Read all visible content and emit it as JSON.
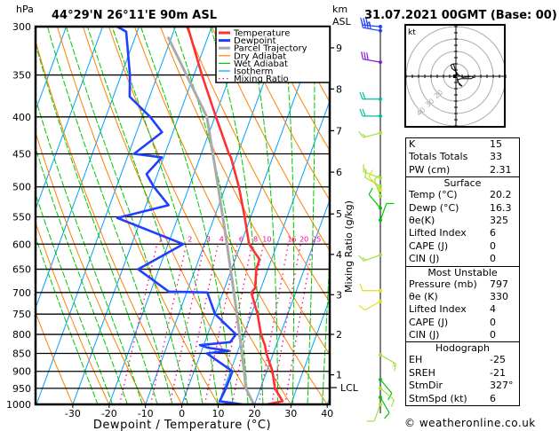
{
  "header": {
    "pressure_unit": "hPa",
    "location": "44°29'N  26°11'E  90m  ASL",
    "height_unit": "km",
    "height_ref": "ASL",
    "datetime": "31.07.2021  00GMT  (Base: 00)"
  },
  "chart_data": {
    "type": "skew-t",
    "xlabel": "Dewpoint / Temperature (°C)",
    "ylabel_right": "Mixing Ratio (g/kg)",
    "pressure_ticks": [
      300,
      350,
      400,
      450,
      500,
      550,
      600,
      650,
      700,
      750,
      800,
      850,
      900,
      950,
      1000
    ],
    "temperature_ticks": [
      -30,
      -20,
      -10,
      0,
      10,
      20,
      30,
      40
    ],
    "xlim": [
      -40,
      40
    ],
    "ylim_hpa": [
      1000,
      300
    ],
    "km_ticks": [
      {
        "label": "1",
        "p": 910
      },
      {
        "label": "2",
        "p": 800
      },
      {
        "label": "3",
        "p": 705
      },
      {
        "label": "4",
        "p": 620
      },
      {
        "label": "5",
        "p": 545
      },
      {
        "label": "6",
        "p": 477
      },
      {
        "label": "7",
        "p": 418
      },
      {
        "label": "8",
        "p": 366
      },
      {
        "label": "9",
        "p": 321
      }
    ],
    "lcl": {
      "label": "LCL",
      "p": 948
    },
    "mixing_ratio_labels": [
      "1",
      "2",
      "3",
      "4",
      "6",
      "8",
      "10",
      "16",
      "20",
      "25"
    ],
    "mixing_ratio_values": [
      1,
      2,
      3,
      4,
      6,
      8,
      10,
      16,
      20,
      25
    ],
    "legend": [
      {
        "label": "Temperature",
        "color": "#ff3030",
        "style": "solid-thick"
      },
      {
        "label": "Dewpoint",
        "color": "#2040ff",
        "style": "solid-thick"
      },
      {
        "label": "Parcel Trajectory",
        "color": "#aaaaaa",
        "style": "solid-thick"
      },
      {
        "label": "Dry Adiabat",
        "color": "#ff8000",
        "style": "solid"
      },
      {
        "label": "Wet Adiabat",
        "color": "#00c800",
        "style": "solid"
      },
      {
        "label": "Isotherm",
        "color": "#00a0ff",
        "style": "solid"
      },
      {
        "label": "Mixing Ratio",
        "color": "#ff0090",
        "style": "dotted"
      }
    ],
    "series": [
      {
        "name": "Temperature",
        "color": "#ff3030",
        "points": [
          [
            1000,
            23.4
          ],
          [
            990,
            27.4
          ],
          [
            950,
            24.0
          ],
          [
            900,
            21.6
          ],
          [
            850,
            18.1
          ],
          [
            830,
            17.0
          ],
          [
            800,
            14.7
          ],
          [
            750,
            11.7
          ],
          [
            700,
            7.8
          ],
          [
            690,
            8.4
          ],
          [
            650,
            6.8
          ],
          [
            630,
            6.7
          ],
          [
            600,
            2.3
          ],
          [
            550,
            -1.7
          ],
          [
            500,
            -6.3
          ],
          [
            455,
            -11.5
          ],
          [
            450,
            -12.4
          ],
          [
            400,
            -19.7
          ],
          [
            350,
            -27.8
          ],
          [
            300,
            -36.6
          ]
        ]
      },
      {
        "name": "Dewpoint",
        "color": "#2040ff",
        "points": [
          [
            1000,
            16.6
          ],
          [
            990,
            10.1
          ],
          [
            950,
            10.5
          ],
          [
            900,
            10.6
          ],
          [
            850,
            1.7
          ],
          [
            843,
            7.5
          ],
          [
            835,
            1.5
          ],
          [
            828,
            -1.0
          ],
          [
            820,
            7.0
          ],
          [
            800,
            7.8
          ],
          [
            750,
            0.0
          ],
          [
            700,
            -4.3
          ],
          [
            698,
            -15.0
          ],
          [
            650,
            -25.7
          ],
          [
            600,
            -15.8
          ],
          [
            552,
            -36.6
          ],
          [
            530,
            -23.8
          ],
          [
            500,
            -29.7
          ],
          [
            480,
            -33.0
          ],
          [
            455,
            -30.5
          ],
          [
            450,
            -38.5
          ],
          [
            420,
            -33.0
          ],
          [
            400,
            -37.8
          ],
          [
            375,
            -45.5
          ],
          [
            350,
            -47.6
          ],
          [
            305,
            -53.0
          ],
          [
            300,
            -56.0
          ]
        ]
      },
      {
        "name": "Parcel Trajectory",
        "color": "#aaaaaa",
        "points": [
          [
            1000,
            19.8
          ],
          [
            950,
            16.0
          ],
          [
            900,
            13.8
          ],
          [
            800,
            8.8
          ],
          [
            700,
            3.0
          ],
          [
            600,
            -3.8
          ],
          [
            500,
            -12.0
          ],
          [
            400,
            -22.2
          ],
          [
            310,
            -41.0
          ]
        ]
      }
    ],
    "wind_barbs": [
      {
        "p": 300,
        "dir": 275,
        "spd": 35,
        "color": "#2040ff"
      },
      {
        "p": 304,
        "dir": 280,
        "spd": 40,
        "color": "#2040ff"
      },
      {
        "p": 336,
        "dir": 280,
        "spd": 30,
        "color": "#8020e0"
      },
      {
        "p": 378,
        "dir": 270,
        "spd": 20,
        "color": "#00c0a0"
      },
      {
        "p": 399,
        "dir": 270,
        "spd": 20,
        "color": "#00c0a0"
      },
      {
        "p": 421,
        "dir": 255,
        "spd": 15,
        "color": "#a0e040"
      },
      {
        "p": 486,
        "dir": 290,
        "spd": 15,
        "color": "#a0e040"
      },
      {
        "p": 499,
        "dir": 300,
        "spd": 10,
        "color": "#a0e040"
      },
      {
        "p": 505,
        "dir": 320,
        "spd": 10,
        "color": "#e0e020"
      },
      {
        "p": 515,
        "dir": 340,
        "spd": 10,
        "color": "#a0e040"
      },
      {
        "p": 535,
        "dir": 320,
        "spd": 10,
        "color": "#00c800"
      },
      {
        "p": 556,
        "dir": 20,
        "spd": 10,
        "color": "#00c800"
      },
      {
        "p": 621,
        "dir": 250,
        "spd": 15,
        "color": "#a0e040"
      },
      {
        "p": 696,
        "dir": 270,
        "spd": 10,
        "color": "#e0e020"
      },
      {
        "p": 720,
        "dir": 240,
        "spd": 10,
        "color": "#e0e020"
      },
      {
        "p": 854,
        "dir": 120,
        "spd": 15,
        "color": "#a0e040"
      },
      {
        "p": 924,
        "dir": 140,
        "spd": 10,
        "color": "#00c800"
      },
      {
        "p": 950,
        "dir": 130,
        "spd": 10,
        "color": "#a0e040"
      },
      {
        "p": 978,
        "dir": 150,
        "spd": 10,
        "color": "#00c800"
      },
      {
        "p": 1000,
        "dir": 200,
        "spd": 10,
        "color": "#a0e040"
      }
    ],
    "hodograph": {
      "unit_label": "kt",
      "rings_kt": [
        10,
        20,
        30,
        40
      ],
      "ring_labels": [
        "10",
        "20",
        "30",
        "40"
      ],
      "trace_uv_kt": [
        [
          1,
          -1
        ],
        [
          2,
          -5
        ],
        [
          5,
          -8
        ],
        [
          3,
          -7
        ],
        [
          1,
          -3
        ],
        [
          4,
          -2
        ],
        [
          12,
          -2
        ],
        [
          14,
          -1
        ],
        [
          13,
          0
        ],
        [
          6,
          -1
        ],
        [
          2,
          1
        ],
        [
          0,
          4
        ],
        [
          -3,
          6
        ],
        [
          -4,
          9
        ],
        [
          -2,
          10
        ],
        [
          -1,
          7
        ],
        [
          0,
          3
        ],
        [
          1,
          1
        ],
        [
          0,
          0
        ],
        [
          -2,
          -1
        ]
      ]
    }
  },
  "indices": {
    "general": [
      {
        "label": "K",
        "value": "15"
      },
      {
        "label": "Totals Totals",
        "value": "33"
      },
      {
        "label": "PW (cm)",
        "value": "2.31"
      }
    ],
    "surface": {
      "title": "Surface",
      "rows": [
        {
          "label": "Temp (°C)",
          "value": "20.2"
        },
        {
          "label": "Dewp (°C)",
          "value": "16.3"
        },
        {
          "label": "θe(K)",
          "value": "325"
        },
        {
          "label": "Lifted Index",
          "value": "6"
        },
        {
          "label": "CAPE (J)",
          "value": "0"
        },
        {
          "label": "CIN (J)",
          "value": "0"
        }
      ]
    },
    "most_unstable": {
      "title": "Most Unstable",
      "rows": [
        {
          "label": "Pressure (mb)",
          "value": "797"
        },
        {
          "label": "θe (K)",
          "value": "330"
        },
        {
          "label": "Lifted Index",
          "value": "4"
        },
        {
          "label": "CAPE (J)",
          "value": "0"
        },
        {
          "label": "CIN (J)",
          "value": "0"
        }
      ]
    },
    "hodograph": {
      "title": "Hodograph",
      "rows": [
        {
          "label": "EH",
          "value": "-25"
        },
        {
          "label": "SREH",
          "value": "-21"
        },
        {
          "label": "StmDir",
          "value": "327°"
        },
        {
          "label": "StmSpd (kt)",
          "value": "6"
        }
      ]
    }
  },
  "footer": {
    "credit": "© weatheronline.co.uk"
  }
}
